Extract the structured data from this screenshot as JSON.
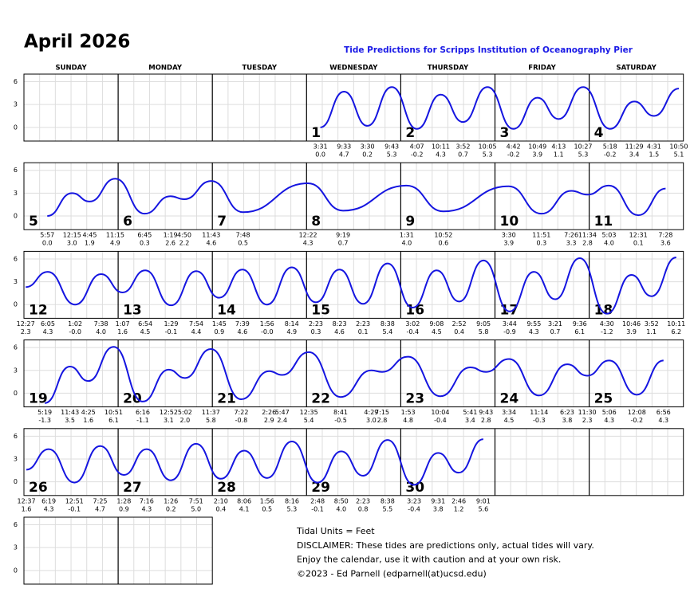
{
  "header": {
    "title": "April 2026",
    "subtitle": "Tide Predictions for Scripps Institution of Oceanography Pier"
  },
  "weekdays": [
    "SUNDAY",
    "MONDAY",
    "TUESDAY",
    "WEDNESDAY",
    "THURSDAY",
    "FRIDAY",
    "SATURDAY"
  ],
  "axis": {
    "ylim": [
      -1.8,
      7
    ],
    "yticks": [
      0,
      3,
      6
    ]
  },
  "weeks": [
    {
      "days": [
        null,
        null,
        null,
        {
          "day": "1",
          "tides": [
            {
              "time": "3:31",
              "height": "0.0"
            },
            {
              "time": "9:33",
              "height": "4.7"
            },
            {
              "time": "3:30",
              "height": "0.2"
            },
            {
              "time": "9:43",
              "height": "5.3"
            }
          ]
        },
        {
          "day": "2",
          "tides": [
            {
              "time": "4:07",
              "height": "-0.2"
            },
            {
              "time": "10:11",
              "height": "4.3"
            },
            {
              "time": "3:52",
              "height": "0.7"
            },
            {
              "time": "10:05",
              "height": "5.3"
            }
          ]
        },
        {
          "day": "3",
          "tides": [
            {
              "time": "4:42",
              "height": "-0.2"
            },
            {
              "time": "10:49",
              "height": "3.9"
            },
            {
              "time": "4:13",
              "height": "1.1"
            },
            {
              "time": "10:27",
              "height": "5.3"
            }
          ]
        },
        {
          "day": "4",
          "tides": [
            {
              "time": "5:18",
              "height": "-0.2"
            },
            {
              "time": "11:29",
              "height": "3.4"
            },
            {
              "time": "4:31",
              "height": "1.5"
            },
            {
              "time": "10:50",
              "height": "5.1"
            }
          ]
        }
      ]
    },
    {
      "days": [
        {
          "day": "5",
          "tides": [
            {
              "time": "5:57",
              "height": "0.0"
            },
            {
              "time": "12:15",
              "height": "3.0"
            },
            {
              "time": "4:45",
              "height": "1.9"
            },
            {
              "time": "11:15",
              "height": "4.9"
            }
          ]
        },
        {
          "day": "6",
          "tides": [
            {
              "time": "6:45",
              "height": "0.3"
            },
            {
              "time": "1:19",
              "height": "2.6"
            },
            {
              "time": "4:50",
              "height": "2.2"
            },
            {
              "time": "11:43",
              "height": "4.6"
            }
          ]
        },
        {
          "day": "7",
          "tides": [
            {
              "time": "7:48",
              "height": "0.5"
            }
          ]
        },
        {
          "day": "8",
          "tides": [
            {
              "time": "12:22",
              "height": "4.3"
            },
            {
              "time": "9:19",
              "height": "0.7"
            }
          ]
        },
        {
          "day": "9",
          "tides": [
            {
              "time": "1:31",
              "height": "4.0"
            },
            {
              "time": "10:52",
              "height": "0.6"
            }
          ]
        },
        {
          "day": "10",
          "tides": [
            {
              "time": "3:30",
              "height": "3.9"
            },
            {
              "time": "11:51",
              "height": "0.3"
            },
            {
              "time": "7:26",
              "height": "3.3"
            },
            {
              "time": "11:34",
              "height": "2.8"
            }
          ]
        },
        {
          "day": "11",
          "tides": [
            {
              "time": "5:03",
              "height": "4.0"
            },
            {
              "time": "12:31",
              "height": "0.1"
            },
            {
              "time": "7:28",
              "height": "3.6"
            }
          ]
        }
      ]
    },
    {
      "days": [
        {
          "day": "12",
          "tides": [
            {
              "time": "12:27",
              "height": "2.3"
            },
            {
              "time": "6:05",
              "height": "4.3"
            },
            {
              "time": "1:02",
              "height": "-0.0"
            },
            {
              "time": "7:38",
              "height": "4.0"
            }
          ]
        },
        {
          "day": "13",
          "tides": [
            {
              "time": "1:07",
              "height": "1.6"
            },
            {
              "time": "6:54",
              "height": "4.5"
            },
            {
              "time": "1:29",
              "height": "-0.1"
            },
            {
              "time": "7:54",
              "height": "4.4"
            }
          ]
        },
        {
          "day": "14",
          "tides": [
            {
              "time": "1:45",
              "height": "0.9"
            },
            {
              "time": "7:39",
              "height": "4.6"
            },
            {
              "time": "1:56",
              "height": "-0.0"
            },
            {
              "time": "8:14",
              "height": "4.9"
            }
          ]
        },
        {
          "day": "15",
          "tides": [
            {
              "time": "2:23",
              "height": "0.3"
            },
            {
              "time": "8:23",
              "height": "4.6"
            },
            {
              "time": "2:23",
              "height": "0.1"
            },
            {
              "time": "8:38",
              "height": "5.4"
            }
          ]
        },
        {
          "day": "16",
          "tides": [
            {
              "time": "3:02",
              "height": "-0.4"
            },
            {
              "time": "9:08",
              "height": "4.5"
            },
            {
              "time": "2:52",
              "height": "0.4"
            },
            {
              "time": "9:05",
              "height": "5.8"
            }
          ]
        },
        {
          "day": "17",
          "tides": [
            {
              "time": "3:44",
              "height": "-0.9"
            },
            {
              "time": "9:55",
              "height": "4.3"
            },
            {
              "time": "3:21",
              "height": "0.7"
            },
            {
              "time": "9:36",
              "height": "6.1"
            }
          ]
        },
        {
          "day": "18",
          "tides": [
            {
              "time": "4:30",
              "height": "-1.2"
            },
            {
              "time": "10:46",
              "height": "3.9"
            },
            {
              "time": "3:52",
              "height": "1.1"
            },
            {
              "time": "10:11",
              "height": "6.2"
            }
          ]
        }
      ]
    },
    {
      "days": [
        {
          "day": "19",
          "tides": [
            {
              "time": "5:19",
              "height": "-1.3"
            },
            {
              "time": "11:43",
              "height": "3.5"
            },
            {
              "time": "4:25",
              "height": "1.6"
            },
            {
              "time": "10:51",
              "height": "6.1"
            }
          ]
        },
        {
          "day": "20",
          "tides": [
            {
              "time": "6:16",
              "height": "-1.1"
            },
            {
              "time": "12:52",
              "height": "3.1"
            },
            {
              "time": "5:02",
              "height": "2.0"
            },
            {
              "time": "11:37",
              "height": "5.8"
            }
          ]
        },
        {
          "day": "21",
          "tides": [
            {
              "time": "7:22",
              "height": "-0.8"
            },
            {
              "time": "2:26",
              "height": "2.9"
            },
            {
              "time": "5:47",
              "height": "2.4"
            }
          ]
        },
        {
          "day": "22",
          "tides": [
            {
              "time": "12:35",
              "height": "5.4"
            },
            {
              "time": "8:41",
              "height": "-0.5"
            },
            {
              "time": "4:29",
              "height": "3.0"
            },
            {
              "time": "7:15",
              "height": "2.8"
            }
          ]
        },
        {
          "day": "23",
          "tides": [
            {
              "time": "1:53",
              "height": "4.8"
            },
            {
              "time": "10:04",
              "height": "-0.4"
            },
            {
              "time": "5:41",
              "height": "3.4"
            },
            {
              "time": "9:43",
              "height": "2.8"
            }
          ]
        },
        {
          "day": "24",
          "tides": [
            {
              "time": "3:34",
              "height": "4.5"
            },
            {
              "time": "11:14",
              "height": "-0.3"
            },
            {
              "time": "6:23",
              "height": "3.8"
            },
            {
              "time": "11:30",
              "height": "2.3"
            }
          ]
        },
        {
          "day": "25",
          "tides": [
            {
              "time": "5:06",
              "height": "4.3"
            },
            {
              "time": "12:08",
              "height": "-0.2"
            },
            {
              "time": "6:56",
              "height": "4.3"
            }
          ]
        }
      ]
    },
    {
      "days": [
        {
          "day": "26",
          "tides": [
            {
              "time": "12:37",
              "height": "1.6"
            },
            {
              "time": "6:19",
              "height": "4.3"
            },
            {
              "time": "12:51",
              "height": "-0.1"
            },
            {
              "time": "7:25",
              "height": "4.7"
            }
          ]
        },
        {
          "day": "27",
          "tides": [
            {
              "time": "1:28",
              "height": "0.9"
            },
            {
              "time": "7:16",
              "height": "4.3"
            },
            {
              "time": "1:26",
              "height": "0.2"
            },
            {
              "time": "7:51",
              "height": "5.0"
            }
          ]
        },
        {
          "day": "28",
          "tides": [
            {
              "time": "2:10",
              "height": "0.4"
            },
            {
              "time": "8:06",
              "height": "4.1"
            },
            {
              "time": "1:56",
              "height": "0.5"
            },
            {
              "time": "8:16",
              "height": "5.3"
            }
          ]
        },
        {
          "day": "29",
          "tides": [
            {
              "time": "2:48",
              "height": "-0.1"
            },
            {
              "time": "8:50",
              "height": "4.0"
            },
            {
              "time": "2:23",
              "height": "0.8"
            },
            {
              "time": "8:38",
              "height": "5.5"
            }
          ]
        },
        {
          "day": "30",
          "tides": [
            {
              "time": "3:23",
              "height": "-0.4"
            },
            {
              "time": "9:31",
              "height": "3.8"
            },
            {
              "time": "2:46",
              "height": "1.2"
            },
            {
              "time": "9:01",
              "height": "5.6"
            }
          ]
        },
        null,
        null
      ]
    },
    {
      "days": [
        null,
        null
      ]
    }
  ],
  "footer": [
    "Tidal Units = Feet",
    "DISCLAIMER: These tides are predictions only, actual tides will vary.",
    "Enjoy the calendar, use it with caution and at your own risk.",
    "©2023 - Ed Parnell (edparnell(at)ucsd.edu)"
  ]
}
